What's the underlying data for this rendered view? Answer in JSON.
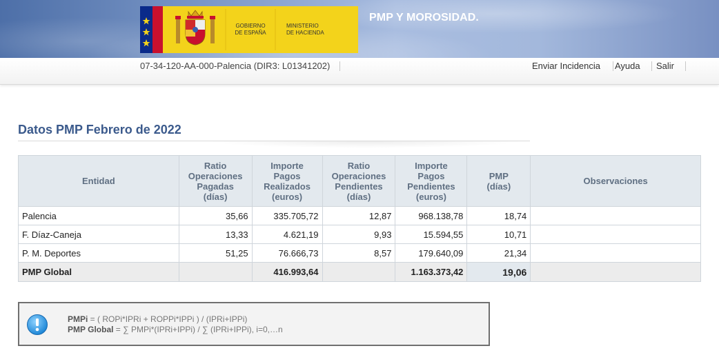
{
  "header": {
    "logo_text_gobierno": [
      "GOBIERNO",
      "DE ESPAÑA"
    ],
    "logo_text_ministerio": [
      "MINISTERIO",
      "DE HACIENDA"
    ],
    "app_title": "PMP Y MOROSIDAD."
  },
  "subbar": {
    "entity": "07-34-120-AA-000-Palencia (DIR3: L01341202)",
    "links": {
      "incidencia": "Enviar Incidencia",
      "ayuda": "Ayuda",
      "salir": "Salir"
    }
  },
  "main": {
    "title": "Datos PMP Febrero de 2022",
    "table": {
      "headers": {
        "entidad": "Entidad",
        "rop": [
          "Ratio",
          "Operaciones",
          "Pagadas",
          "(días)"
        ],
        "ipr": [
          "Importe",
          "Pagos",
          "Realizados",
          "(euros)"
        ],
        "ropp": [
          "Ratio",
          "Operaciones",
          "Pendientes",
          "(días)"
        ],
        "ipp": [
          "Importe",
          "Pagos",
          "Pendientes",
          "(euros)"
        ],
        "pmp": [
          "PMP",
          "(días)"
        ],
        "obs": "Observaciones"
      },
      "rows": [
        {
          "entidad": "Palencia",
          "rop": "35,66",
          "ipr": "335.705,72",
          "ropp": "12,87",
          "ipp": "968.138,78",
          "pmp": "18,74",
          "obs": ""
        },
        {
          "entidad": "F. Díaz-Caneja",
          "rop": "13,33",
          "ipr": "4.621,19",
          "ropp": "9,93",
          "ipp": "15.594,55",
          "pmp": "10,71",
          "obs": ""
        },
        {
          "entidad": "P. M. Deportes",
          "rop": "51,25",
          "ipr": "76.666,73",
          "ropp": "8,57",
          "ipp": "179.640,09",
          "pmp": "21,34",
          "obs": ""
        }
      ],
      "global": {
        "entidad": "PMP Global",
        "ipr": "416.993,64",
        "ipp": "1.163.373,42",
        "pmp": "19,06"
      }
    },
    "formula": {
      "line1_label": "PMPi",
      "line1_text": " = ( ROPi*IPRi + ROPPi*IPPi ) / (IPRi+IPPi)",
      "line2_label": "PMP Global",
      "line2_text": " = ∑ PMPi*(IPRi+IPPi) / ∑ (IPRi+IPPi), i=0,…n"
    }
  },
  "colors": {
    "title": "#3b5a8c",
    "header_bg": "#e3e9ee",
    "banner": "#7d99c8",
    "logo_bg": "#f3d31b"
  },
  "icons": {
    "info": "info-icon",
    "coat_of_arms": "escudo-icon"
  }
}
